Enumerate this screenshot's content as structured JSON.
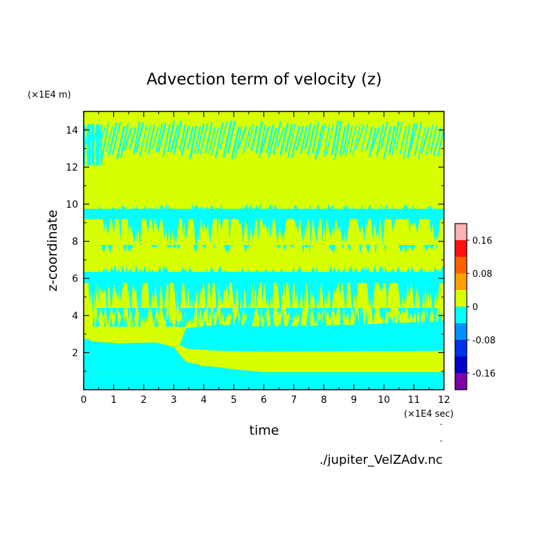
{
  "chart_data": {
    "type": "heatmap",
    "title": "Advection term of velocity (z)",
    "xlabel": "time",
    "ylabel": "z-coordinate",
    "x_unit": "(×1E4 sec)",
    "y_unit": "(×1E4 m)",
    "xlim": [
      0,
      12
    ],
    "ylim": [
      0,
      15
    ],
    "x_ticks": [
      "0",
      "1",
      "2",
      "3",
      "4",
      "5",
      "6",
      "7",
      "8",
      "9",
      "10",
      "11",
      "12"
    ],
    "y_ticks": [
      "2",
      "4",
      "6",
      "8",
      "10",
      "12",
      "14"
    ],
    "colorbar": {
      "levels": [
        -0.2,
        -0.16,
        -0.12,
        -0.08,
        -0.04,
        0,
        0.04,
        0.08,
        0.12,
        0.16,
        0.2
      ],
      "colors": [
        "#8000a8",
        "#0000c8",
        "#0030e8",
        "#0090ff",
        "#00ffff",
        "#d8ff00",
        "#ffa000",
        "#ff6000",
        "#ff1010",
        "#ffb0b0"
      ],
      "tick_labels": [
        "0.16",
        "0.08",
        "0",
        "-0.08",
        "-0.16"
      ],
      "tick_values": [
        0.16,
        0.08,
        0,
        -0.08,
        -0.16
      ]
    },
    "source": "./jupiter_VelZAdv.nc"
  },
  "colors": {
    "positive_band": "#d8ff00",
    "negative_band": "#00ffff"
  }
}
